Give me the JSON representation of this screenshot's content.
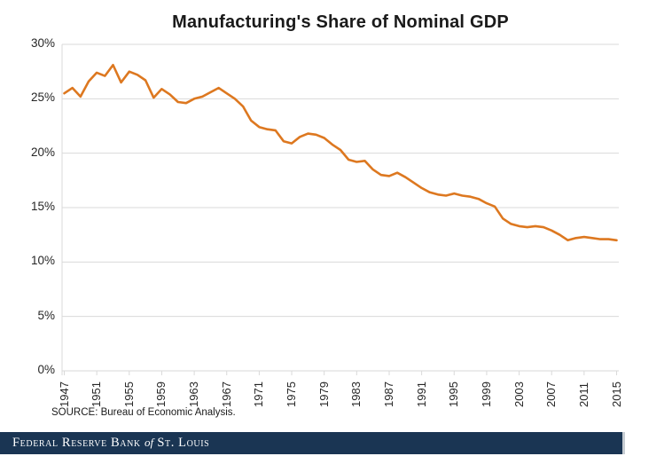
{
  "page": {
    "background": "#ffffff"
  },
  "chart": {
    "title": "Manufacturing's Share of Nominal GDP",
    "source_note": "SOURCE: Bureau of Economic Analysis.",
    "line_color": "#dd7820",
    "gridline_color": "#d9d9d9",
    "axis_text_color": "#262626"
  },
  "chart_data": {
    "type": "line",
    "title": "Manufacturing's Share of Nominal GDP",
    "x": [
      1947,
      1948,
      1949,
      1950,
      1951,
      1952,
      1953,
      1954,
      1955,
      1956,
      1957,
      1958,
      1959,
      1960,
      1961,
      1962,
      1963,
      1964,
      1965,
      1966,
      1967,
      1968,
      1969,
      1970,
      1971,
      1972,
      1973,
      1974,
      1975,
      1976,
      1977,
      1978,
      1979,
      1980,
      1981,
      1982,
      1983,
      1984,
      1985,
      1986,
      1987,
      1988,
      1989,
      1990,
      1991,
      1992,
      1993,
      1994,
      1995,
      1996,
      1997,
      1998,
      1999,
      2000,
      2001,
      2002,
      2003,
      2004,
      2005,
      2006,
      2007,
      2008,
      2009,
      2010,
      2011,
      2012,
      2013,
      2014,
      2015
    ],
    "values": [
      25.5,
      26.0,
      25.2,
      26.6,
      27.4,
      27.1,
      28.1,
      26.5,
      27.5,
      27.2,
      26.7,
      25.1,
      25.9,
      25.4,
      24.7,
      24.6,
      25.0,
      25.2,
      25.6,
      26.0,
      25.5,
      25.0,
      24.3,
      23.0,
      22.4,
      22.2,
      22.1,
      21.1,
      20.9,
      21.5,
      21.8,
      21.7,
      21.4,
      20.8,
      20.3,
      19.4,
      19.2,
      19.3,
      18.5,
      18.0,
      17.9,
      18.2,
      17.8,
      17.3,
      16.8,
      16.4,
      16.2,
      16.1,
      16.3,
      16.1,
      16.0,
      15.8,
      15.4,
      15.1,
      14.0,
      13.5,
      13.3,
      13.2,
      13.3,
      13.2,
      12.9,
      12.5,
      12.0,
      12.2,
      12.3,
      12.2,
      12.1,
      12.1,
      12.0
    ],
    "ylim": [
      0,
      30
    ],
    "y_tick_step": 5,
    "y_tick_labels": [
      "30%",
      "25%",
      "20%",
      "15%",
      "10%",
      "5%",
      "0%"
    ],
    "x_tick_labels": [
      "1947",
      "1951",
      "1955",
      "1959",
      "1963",
      "1967",
      "1971",
      "1975",
      "1979",
      "1983",
      "1987",
      "1991",
      "1995",
      "1999",
      "2003",
      "2007",
      "2011",
      "2015"
    ],
    "grid": "horizontal",
    "legend": "none"
  },
  "footer": {
    "bar_color": "#1a3553",
    "part1": "Federal Reserve Bank ",
    "part2": "of",
    "part3": " St. Louis"
  }
}
